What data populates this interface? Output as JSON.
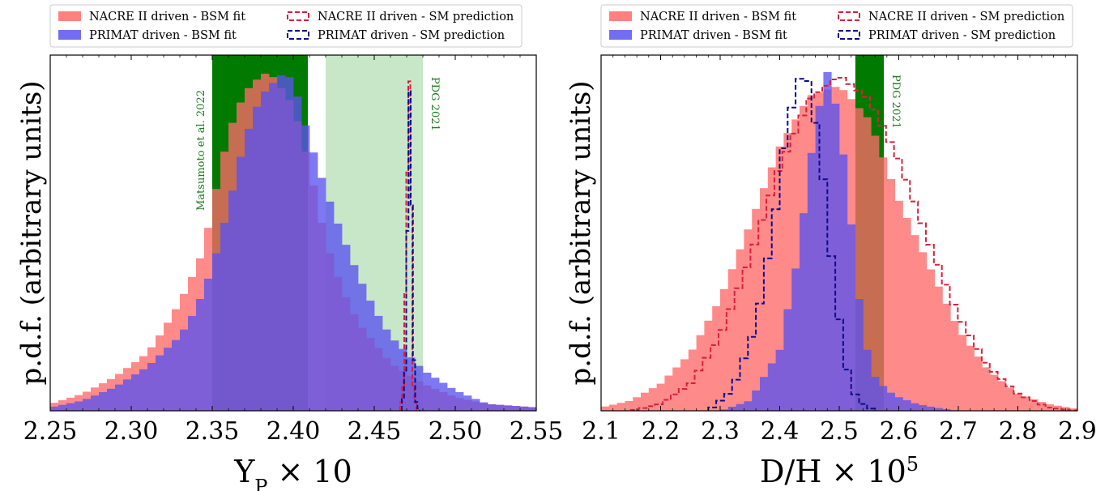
{
  "colors": {
    "nacre_fill": "#ff6a6a",
    "primat_fill": "#5b53ef",
    "nacre_line": "#d6203c",
    "primat_line": "#0c0c8a",
    "band_dark": "#007a00",
    "band_light": "#c8e6c8",
    "annot_text": "#1f7a1f"
  },
  "chart_data": [
    {
      "type": "histogram",
      "xlabel": "Y",
      "xlabel_sub": "P",
      "xlabel_suffix": " × 10",
      "ylabel": "p.d.f.  (arbitrary units)",
      "xlim": [
        2.25,
        2.55
      ],
      "ylim": [
        0,
        1.05
      ],
      "xticks": [
        "2.25",
        "2.30",
        "2.35",
        "2.40",
        "2.45",
        "2.50",
        "2.55"
      ],
      "xtick_values": [
        2.25,
        2.3,
        2.35,
        2.4,
        2.45,
        2.5,
        2.55
      ],
      "legend": {
        "placement": "top-center",
        "entries": [
          {
            "label": "NACRE II driven - BSM fit",
            "style": "fill",
            "color": "#ff6a6a"
          },
          {
            "label": "NACRE II driven - SM prediction",
            "style": "dashed",
            "color": "#d6203c"
          },
          {
            "label": "PRIMAT driven - BSM fit",
            "style": "fill",
            "color": "#5b53ef"
          },
          {
            "label": "PRIMAT driven - SM prediction",
            "style": "dashed",
            "color": "#0c0c8a"
          }
        ]
      },
      "bands": [
        {
          "x": [
            2.35,
            2.409
          ],
          "label": "Matsumoto et al. 2022",
          "style": "dark"
        },
        {
          "x": [
            2.42,
            2.48
          ],
          "label": "PDG 2021",
          "style": "light"
        }
      ],
      "series": [
        {
          "name": "NACRE II driven - BSM fit",
          "kind": "fill",
          "color": "#ff6a6a",
          "x": [
            2.25,
            2.27,
            2.29,
            2.31,
            2.32,
            2.33,
            2.34,
            2.345,
            2.35,
            2.36,
            2.37,
            2.38,
            2.385,
            2.39,
            2.4,
            2.41,
            2.42,
            2.43,
            2.44,
            2.46,
            2.48,
            2.5,
            2.52,
            2.55
          ],
          "y": [
            0.02,
            0.05,
            0.1,
            0.17,
            0.24,
            0.32,
            0.42,
            0.48,
            0.6,
            0.82,
            0.94,
            0.99,
            1.0,
            0.97,
            0.9,
            0.72,
            0.5,
            0.36,
            0.26,
            0.14,
            0.08,
            0.04,
            0.02,
            0.01
          ]
        },
        {
          "name": "PRIMAT driven - BSM fit",
          "kind": "fill",
          "color": "#5b53ef",
          "x": [
            2.25,
            2.27,
            2.29,
            2.31,
            2.33,
            2.34,
            2.35,
            2.36,
            2.37,
            2.38,
            2.39,
            2.395,
            2.4,
            2.41,
            2.42,
            2.43,
            2.44,
            2.45,
            2.46,
            2.48,
            2.5,
            2.52,
            2.55
          ],
          "y": [
            0.01,
            0.03,
            0.07,
            0.13,
            0.22,
            0.3,
            0.42,
            0.6,
            0.8,
            0.93,
            0.98,
            1.0,
            0.97,
            0.8,
            0.65,
            0.52,
            0.4,
            0.3,
            0.22,
            0.12,
            0.06,
            0.02,
            0.01
          ]
        },
        {
          "name": "NACRE II driven - SM prediction",
          "kind": "dashed",
          "color": "#d6203c",
          "x": [
            2.466,
            2.468,
            2.47,
            2.471,
            2.472,
            2.473,
            2.474,
            2.476
          ],
          "y": [
            0.0,
            0.08,
            0.55,
            0.96,
            0.98,
            0.55,
            0.08,
            0.0
          ]
        },
        {
          "name": "PRIMAT driven - SM prediction",
          "kind": "dashed",
          "color": "#0c0c8a",
          "x": [
            2.467,
            2.469,
            2.471,
            2.472,
            2.473,
            2.474,
            2.476,
            2.478
          ],
          "y": [
            0.0,
            0.1,
            0.7,
            1.0,
            0.7,
            0.2,
            0.02,
            0.0
          ]
        }
      ]
    },
    {
      "type": "histogram",
      "xlabel": "D/H",
      "xlabel_suffix": " × 10",
      "xlabel_sup": "5",
      "ylabel": "p.d.f.  (arbitrary units)",
      "xlim": [
        2.1,
        2.9
      ],
      "ylim": [
        0,
        1.05
      ],
      "xticks": [
        "2.1",
        "2.2",
        "2.3",
        "2.4",
        "2.5",
        "2.6",
        "2.7",
        "2.8",
        "2.9"
      ],
      "xtick_values": [
        2.1,
        2.2,
        2.3,
        2.4,
        2.5,
        2.6,
        2.7,
        2.8,
        2.9
      ],
      "legend": {
        "placement": "top-center",
        "entries": [
          {
            "label": "NACRE II driven - BSM fit",
            "style": "fill",
            "color": "#ff6a6a"
          },
          {
            "label": "NACRE II driven - SM prediction",
            "style": "dashed",
            "color": "#d6203c"
          },
          {
            "label": "PRIMAT driven - BSM fit",
            "style": "fill",
            "color": "#5b53ef"
          },
          {
            "label": "PRIMAT driven - SM prediction",
            "style": "dashed",
            "color": "#0c0c8a"
          }
        ]
      },
      "bands": [
        {
          "x": [
            2.527,
            2.575
          ],
          "label": "PDG 2021",
          "style": "dark"
        }
      ],
      "series": [
        {
          "name": "NACRE II driven - BSM fit",
          "kind": "fill",
          "color": "#ff6a6a",
          "x": [
            2.1,
            2.15,
            2.2,
            2.25,
            2.3,
            2.35,
            2.4,
            2.45,
            2.5,
            2.55,
            2.6,
            2.65,
            2.7,
            2.75,
            2.8,
            2.85,
            2.9
          ],
          "y": [
            0.01,
            0.03,
            0.08,
            0.17,
            0.33,
            0.55,
            0.78,
            0.93,
            0.96,
            0.86,
            0.62,
            0.43,
            0.24,
            0.12,
            0.05,
            0.02,
            0.005
          ]
        },
        {
          "name": "PRIMAT driven - BSM fit",
          "kind": "fill",
          "color": "#5b53ef",
          "x": [
            2.3,
            2.35,
            2.4,
            2.43,
            2.46,
            2.48,
            2.5,
            2.52,
            2.54,
            2.56,
            2.58,
            2.6,
            2.63,
            2.66,
            2.7
          ],
          "y": [
            0.0,
            0.03,
            0.18,
            0.45,
            0.85,
            1.0,
            0.86,
            0.55,
            0.22,
            0.1,
            0.06,
            0.04,
            0.02,
            0.01,
            0.0
          ]
        },
        {
          "name": "NACRE II driven - SM prediction",
          "kind": "dashed",
          "color": "#d6203c",
          "x": [
            2.15,
            2.2,
            2.25,
            2.3,
            2.35,
            2.4,
            2.45,
            2.5,
            2.55,
            2.6,
            2.65,
            2.7,
            2.75,
            2.8,
            2.85,
            2.9
          ],
          "y": [
            0.0,
            0.02,
            0.08,
            0.22,
            0.45,
            0.72,
            0.92,
            0.99,
            0.92,
            0.74,
            0.5,
            0.28,
            0.13,
            0.05,
            0.01,
            0.0
          ]
        },
        {
          "name": "PRIMAT driven - SM prediction",
          "kind": "dashed",
          "color": "#0c0c8a",
          "x": [
            2.28,
            2.32,
            2.36,
            2.39,
            2.41,
            2.43,
            2.44,
            2.45,
            2.47,
            2.49,
            2.51,
            2.53,
            2.56
          ],
          "y": [
            0.0,
            0.06,
            0.25,
            0.55,
            0.82,
            0.97,
            1.0,
            0.96,
            0.74,
            0.4,
            0.14,
            0.03,
            0.0
          ]
        }
      ]
    }
  ]
}
